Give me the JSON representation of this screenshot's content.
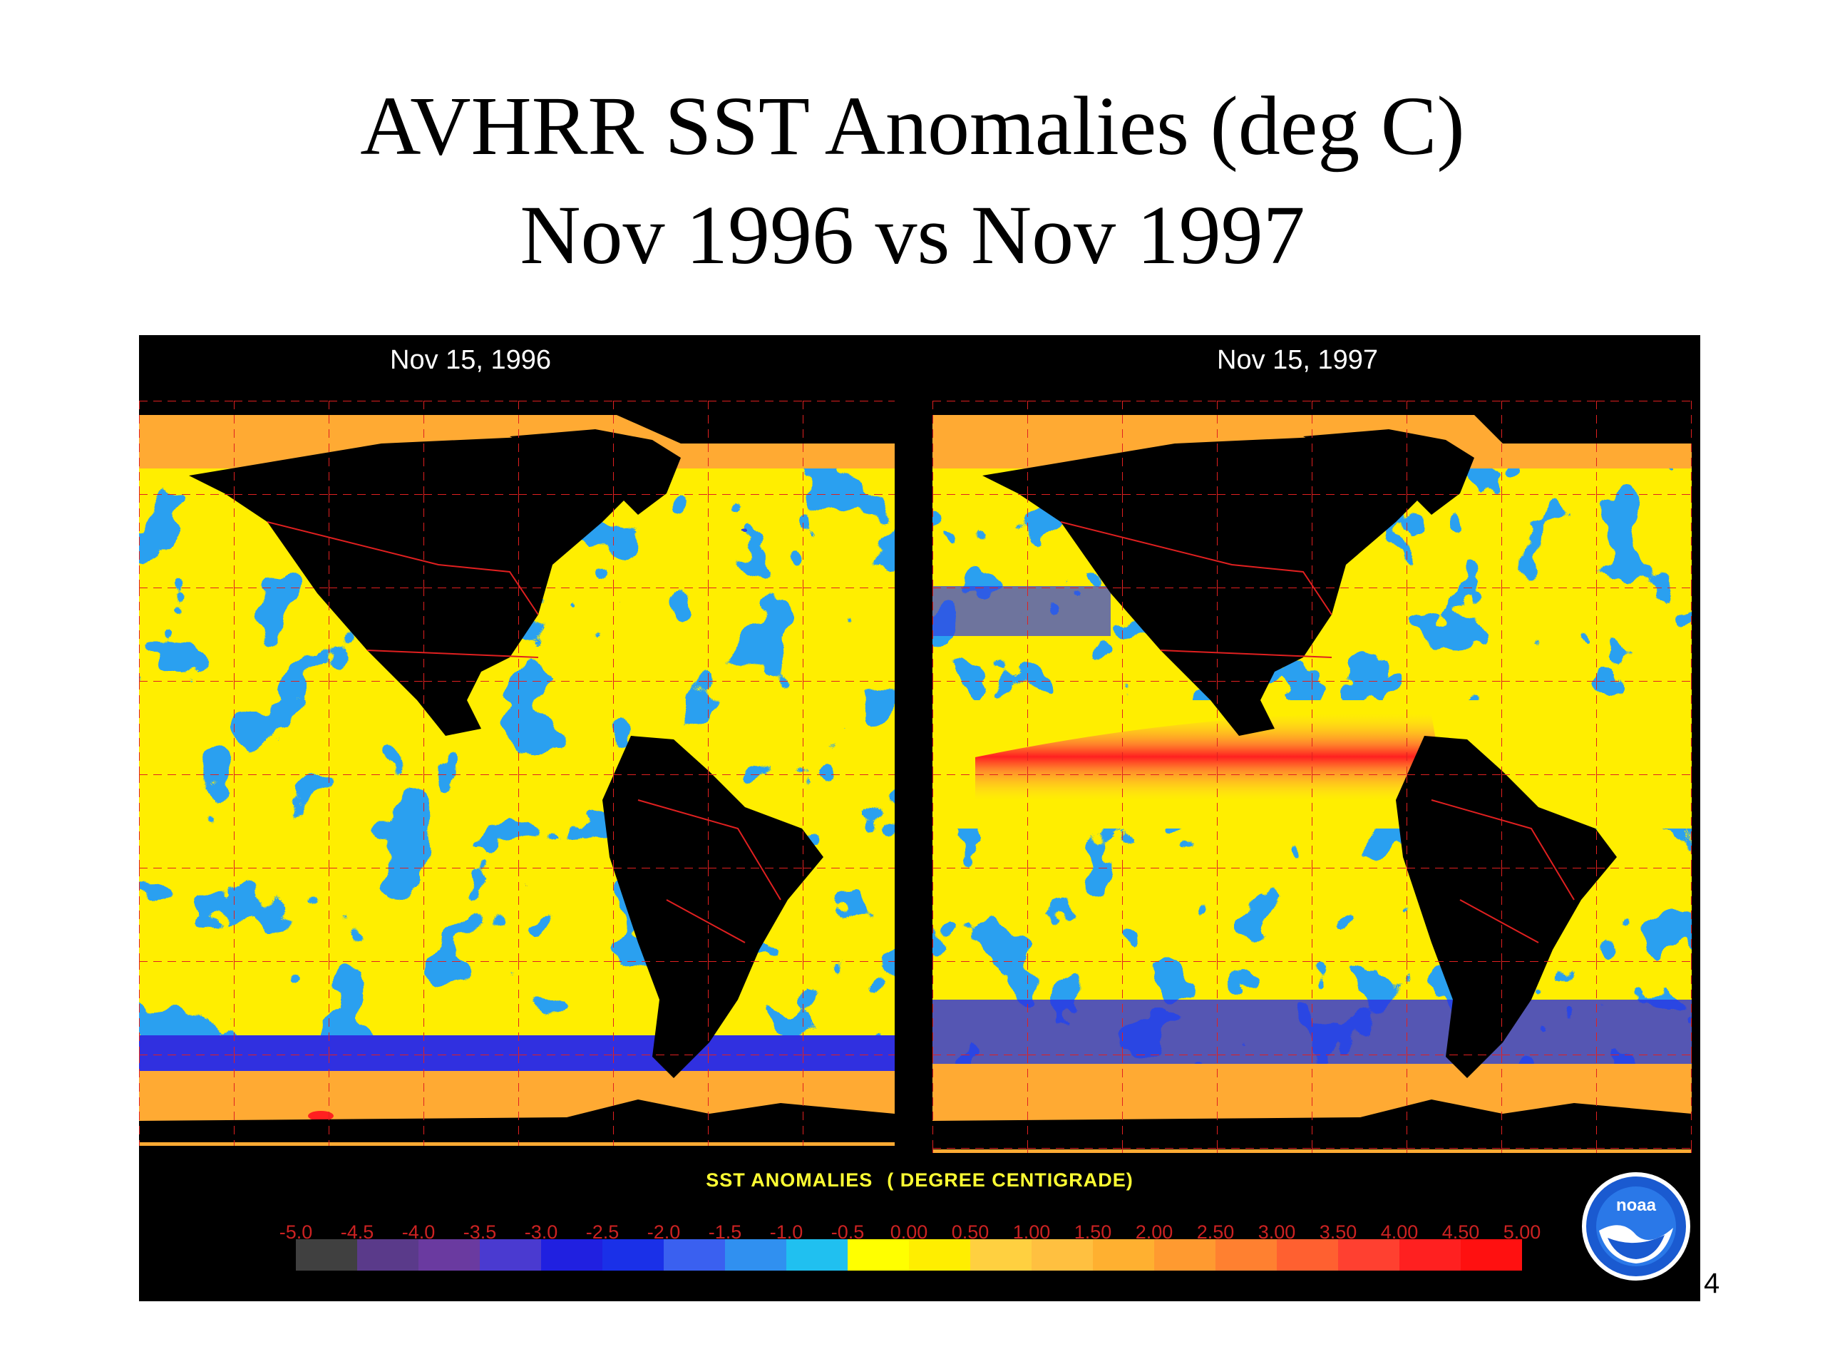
{
  "title_line1": "AVHRR SST Anomalies (deg C)",
  "title_line2": "Nov 1996 vs Nov 1997",
  "panels": [
    {
      "label": "Nov 15, 1996"
    },
    {
      "label": "Nov 15, 1997"
    }
  ],
  "colorbar": {
    "title_part1": "SST ANOMALIES",
    "title_part2": "( DEGREE CENTIGRADE)",
    "ticks": [
      "-5.0",
      "-4.5",
      "-4.0",
      "-3.5",
      "-3.0",
      "-2.5",
      "-2.0",
      "-1.5",
      "-1.0",
      "-0.5",
      "0.00",
      "0.50",
      "1.00",
      "1.50",
      "2.00",
      "2.50",
      "3.00",
      "3.50",
      "4.00",
      "4.50",
      "5.00"
    ],
    "colors": [
      "#404040",
      "#5a3a8a",
      "#6a3aa0",
      "#4a3ad0",
      "#2020e0",
      "#1a30e8",
      "#3a60f0",
      "#3090f0",
      "#20c0f0",
      "#ffff00",
      "#ffee00",
      "#ffd040",
      "#ffc040",
      "#ffb030",
      "#ff9a30",
      "#ff8030",
      "#ff6030",
      "#ff4030",
      "#ff2020",
      "#ff1010"
    ]
  },
  "logo_text": "noaa",
  "page_number": "4"
}
